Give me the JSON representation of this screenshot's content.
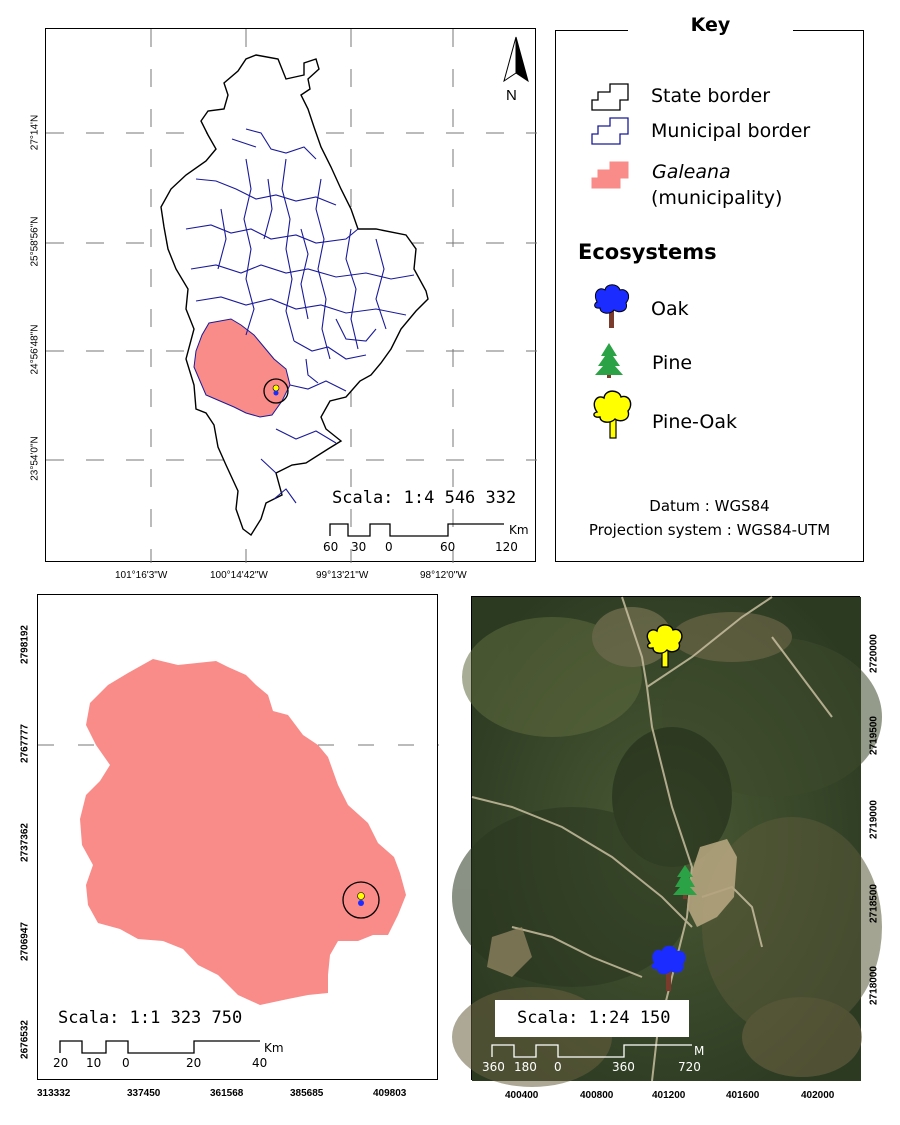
{
  "colors": {
    "galeana_fill": "#f98b88",
    "municipal_border": "#1a1a9a",
    "oak": "#1a2cff",
    "pine": "#2aa245",
    "pine_oak": "#ffff00",
    "trunk": "#7a3b2c"
  },
  "top_map": {
    "scale_text": "Scala: 1:4 546 332",
    "scale_unit": "Km",
    "scale_numbers": [
      "60",
      "30",
      "0",
      "60",
      "120"
    ],
    "lat_labels": [
      "27°14'N",
      "25°58'56\"N",
      "24°56'48\"N",
      "23°54'0\"N"
    ],
    "lon_labels": [
      "101°16'3\"W",
      "100°14'42\"W",
      "99°13'21\"W",
      "98°12'0\"W"
    ],
    "north_label": "N",
    "north_icon": "north-arrow-icon"
  },
  "key": {
    "title": "Key",
    "items": [
      {
        "label": "State border",
        "icon": "state-border-icon"
      },
      {
        "label": "Municipal border",
        "icon": "municipal-border-icon"
      },
      {
        "label_italic": "Galeana",
        "label_sub": "(municipality)",
        "icon": "galeana-icon"
      }
    ],
    "ecosystems_title": "Ecosystems",
    "ecosystems": [
      {
        "label": "Oak",
        "icon": "oak-tree-icon"
      },
      {
        "label": "Pine",
        "icon": "pine-tree-icon"
      },
      {
        "label": "Pine-Oak",
        "icon": "pine-oak-tree-icon"
      }
    ],
    "datum": "Datum : WGS84",
    "projection": "Projection system : WGS84-UTM"
  },
  "left_map": {
    "scale_text": "Scala: 1:1 323 750",
    "scale_unit": "Km",
    "scale_numbers": [
      "20",
      "10",
      "0",
      "20",
      "40"
    ],
    "y_labels": [
      "2798192",
      "2767777",
      "2737362",
      "2706947",
      "2676532"
    ],
    "x_labels": [
      "313332",
      "337450",
      "361568",
      "385685",
      "409803"
    ]
  },
  "right_map": {
    "scale_text": "Scala: 1:24 150",
    "scale_unit": "M",
    "scale_numbers": [
      "360",
      "180",
      "0",
      "360",
      "720"
    ],
    "y_labels": [
      "2720000",
      "2719500",
      "2719000",
      "2718500",
      "2718000"
    ],
    "x_labels": [
      "400400",
      "400800",
      "401200",
      "401600",
      "402000"
    ]
  }
}
